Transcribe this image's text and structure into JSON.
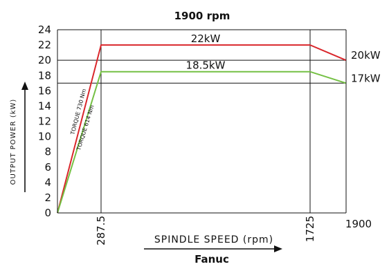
{
  "chart_data": {
    "type": "line",
    "title": "1900 rpm",
    "xlabel": "SPINDLE SPEED (rpm)",
    "ylabel": "OUTPUT POWER (kW)",
    "footer": "Fanuc",
    "ylim": [
      0,
      24
    ],
    "xlim": [
      0,
      1900
    ],
    "x_ticks": [
      "287.5",
      "1725",
      "1900"
    ],
    "y_ticks": [
      0,
      2,
      4,
      6,
      8,
      10,
      12,
      14,
      16,
      18,
      20,
      22,
      24
    ],
    "series": [
      {
        "label": "22kW",
        "end_label": "20kW",
        "torque_label": "TORQUE 730 Nm",
        "color": "#d9262b",
        "x": [
          0,
          287.5,
          1725,
          1900
        ],
        "y": [
          0,
          22,
          22,
          20
        ]
      },
      {
        "label": "18.5kW",
        "end_label": "17kW",
        "torque_label": "TORQUE 614 Nm",
        "color": "#74c043",
        "x": [
          0,
          287.5,
          1725,
          1900
        ],
        "y": [
          0,
          18.5,
          18.5,
          17
        ]
      }
    ],
    "reference_lines_y": [
      20,
      17
    ],
    "reference_lines_x": [
      287.5,
      1725
    ]
  }
}
